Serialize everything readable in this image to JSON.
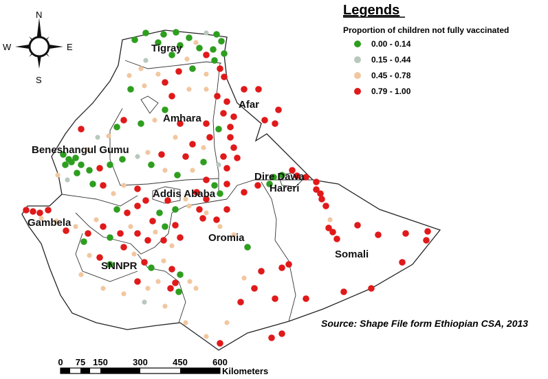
{
  "legend": {
    "title": "Legends",
    "subtitle": "Proportion of children not fully vaccinated",
    "classes": [
      {
        "label": "0.00 - 0.14",
        "color": "#2e9e1f"
      },
      {
        "label": "0.15 - 0.44",
        "color": "#b9c8bd"
      },
      {
        "label": "0.45 - 0.78",
        "color": "#f1c7a0"
      },
      {
        "label": "0.79 - 1.00",
        "color": "#e0191a"
      }
    ]
  },
  "compass": {
    "north": "N",
    "south": "S",
    "east": "E",
    "west": "W"
  },
  "regions": {
    "tigray": "Tigray",
    "afar": "Afar",
    "amhara": "Amhara",
    "beneshangul": "Beneshangul Gumu",
    "dire_dawa": "Dire Dawa",
    "hareri": "Hareri",
    "addis": "Addis Ababa",
    "gambela": "Gambela",
    "oromia": "Oromia",
    "somali": "Somali",
    "snnpr": "SNNPR"
  },
  "source": "Source: Shape File form Ethiopian CSA, 2013",
  "scale_bar": {
    "ticks": [
      "0",
      "75",
      "150",
      "300",
      "450",
      "600"
    ],
    "unit": "Kilometers"
  }
}
